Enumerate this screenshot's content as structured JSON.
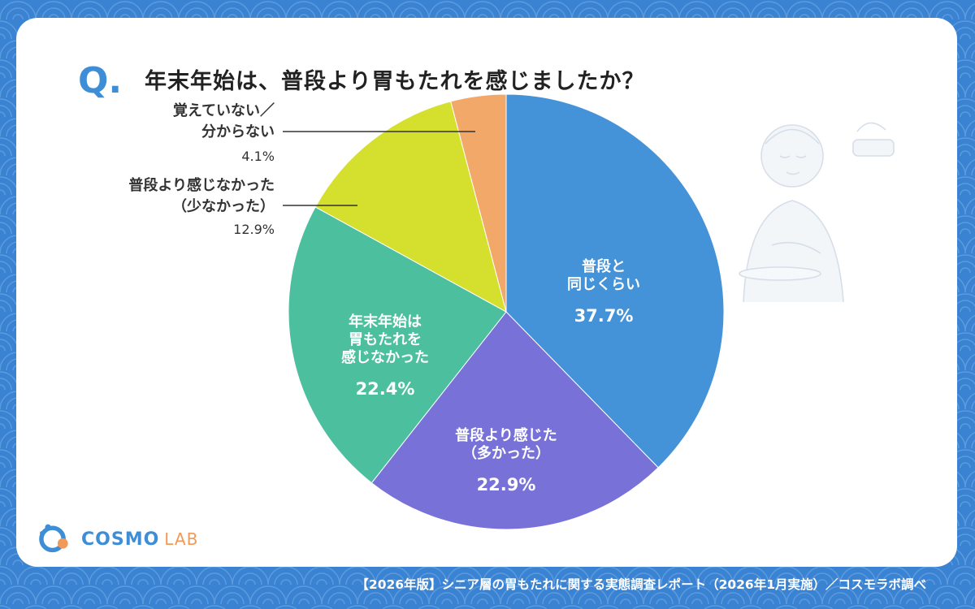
{
  "question": {
    "mark": "Q.",
    "text": "年末年始は、普段より胃もたれを感じましたか？"
  },
  "chart_data": {
    "type": "pie",
    "slices": [
      {
        "label_lines": [
          "普段と",
          "同じくらい"
        ],
        "percent_text": "37.7%",
        "value": 37.7,
        "color": "#4492d8",
        "label_position": "inside"
      },
      {
        "label_lines": [
          "普段より感じた",
          "（多かった）"
        ],
        "percent_text": "22.9%",
        "value": 22.9,
        "color": "#7872d8",
        "label_position": "inside"
      },
      {
        "label_lines": [
          "年末年始は",
          "胃もたれを",
          "感じなかった"
        ],
        "percent_text": "22.4%",
        "value": 22.4,
        "color": "#4cbf9f",
        "label_position": "inside"
      },
      {
        "label_lines": [
          "普段より感じなかった",
          "（少なかった）"
        ],
        "percent_text": "12.9%",
        "value": 12.9,
        "color": "#d5e02e",
        "label_position": "outside"
      },
      {
        "label_lines": [
          "覚えていない／",
          "分からない"
        ],
        "percent_text": "4.1%",
        "value": 4.1,
        "color": "#f2a868",
        "label_position": "outside"
      }
    ]
  },
  "branding": {
    "logo_main": "COSMO",
    "logo_sub": "LAB"
  },
  "footer": {
    "text": "【2026年版】シニア層の胃もたれに関する実態調査レポート（2026年1月実施）／コスモラボ調べ"
  },
  "colors": {
    "background": "#3a82d2",
    "accent": "#3d8ed6",
    "logo_orange": "#f09a5a"
  }
}
